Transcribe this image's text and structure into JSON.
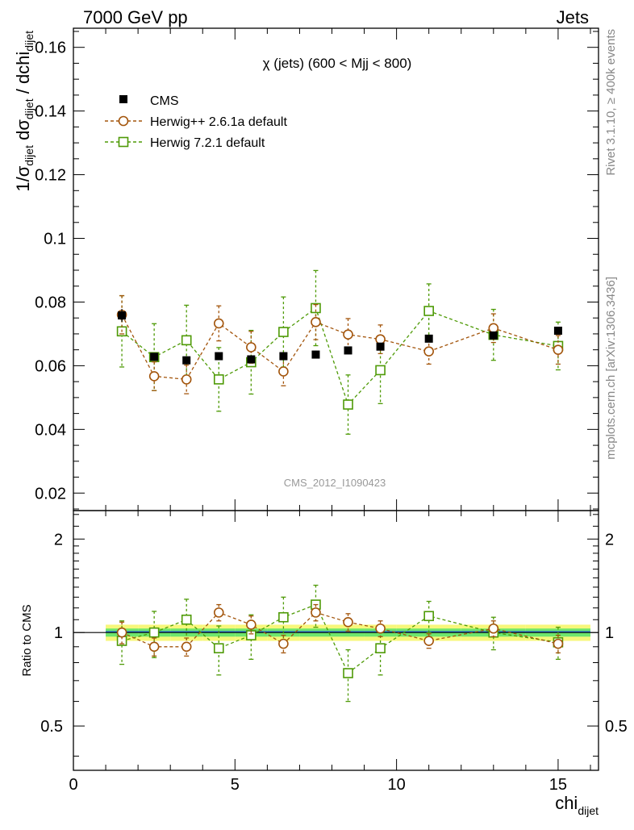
{
  "header": {
    "left_label": "7000 GeV pp",
    "right_label": "Jets",
    "side_label_top": "Rivet 3.1.10, ≥ 400k events",
    "side_label_bottom": "mcplots.cern.ch [arXiv:1306.3436]"
  },
  "chart_data": {
    "type": "scatter",
    "title": "χ (jets) (600 < Mjj <  800)",
    "analysis_tag": "CMS_2012_I1090423",
    "ylabel": {
      "main": "1/σ",
      "sub1": "dijet",
      "mid": " dσ",
      "sub2": "dijet",
      "tail": " / dchi",
      "sub3": "dijet"
    },
    "xlabel": {
      "main": "chi",
      "sub": "dijet"
    },
    "ratio_ylabel": "Ratio to CMS",
    "xlim": [
      0,
      16.25
    ],
    "ylim": [
      0.0145,
      0.166
    ],
    "ratio_ylim": [
      0.36,
      2.47
    ],
    "ratio_log": true,
    "x_ticks": [
      {
        "v": 0,
        "label": "0"
      },
      {
        "v": 5,
        "label": "5"
      },
      {
        "v": 10,
        "label": "10"
      },
      {
        "v": 15,
        "label": "15"
      }
    ],
    "y_ticks": [
      {
        "v": 0.02,
        "label": "0.02"
      },
      {
        "v": 0.04,
        "label": "0.04"
      },
      {
        "v": 0.06,
        "label": "0.06"
      },
      {
        "v": 0.08,
        "label": "0.08"
      },
      {
        "v": 0.1,
        "label": "0.1"
      },
      {
        "v": 0.12,
        "label": "0.12"
      },
      {
        "v": 0.14,
        "label": "0.14"
      },
      {
        "v": 0.16,
        "label": "0.16"
      }
    ],
    "ratio_ticks": [
      {
        "v": 0.5,
        "label": "0.5"
      },
      {
        "v": 1,
        "label": "1"
      },
      {
        "v": 2,
        "label": "2"
      }
    ],
    "bin_edges": [
      1,
      2,
      3,
      4,
      5,
      6,
      7,
      8,
      9,
      10,
      12,
      14,
      16
    ],
    "x": [
      1.5,
      2.5,
      3.5,
      4.5,
      5.5,
      6.5,
      7.5,
      8.5,
      9.5,
      11,
      13,
      15
    ],
    "series": [
      {
        "name": "CMS",
        "style": "data",
        "color": "#000000",
        "values": [
          0.0758,
          0.0628,
          0.0617,
          0.063,
          0.062,
          0.063,
          0.0635,
          0.0648,
          0.066,
          0.0685,
          0.0695,
          0.071
        ],
        "errors": [
          0.002,
          0.0012,
          0.0012,
          0.0012,
          0.0012,
          0.0012,
          0.0012,
          0.0012,
          0.0012,
          0.001,
          0.0012,
          0.0012
        ],
        "ratio_band_inner": [
          0.03,
          0.03,
          0.03,
          0.03,
          0.03,
          0.03,
          0.03,
          0.03,
          0.03,
          0.03,
          0.03,
          0.03
        ],
        "ratio_band_outer": [
          0.06,
          0.06,
          0.06,
          0.06,
          0.06,
          0.06,
          0.06,
          0.06,
          0.06,
          0.06,
          0.06,
          0.06
        ]
      },
      {
        "name": "Herwig++ 2.6.1a default",
        "style": "circle",
        "color": "#a3550c",
        "values": [
          0.076,
          0.0567,
          0.0557,
          0.0733,
          0.0658,
          0.0582,
          0.0737,
          0.0698,
          0.0683,
          0.0645,
          0.0718,
          0.065
        ],
        "errors": [
          0.006,
          0.0045,
          0.0045,
          0.0055,
          0.005,
          0.0045,
          0.0055,
          0.005,
          0.0045,
          0.004,
          0.0045,
          0.0045
        ],
        "ratio": [
          1.0,
          0.9,
          0.9,
          1.16,
          1.06,
          0.92,
          1.16,
          1.08,
          1.03,
          0.94,
          1.03,
          0.92
        ],
        "ratio_errors": [
          0.08,
          0.06,
          0.06,
          0.07,
          0.07,
          0.06,
          0.07,
          0.07,
          0.06,
          0.05,
          0.06,
          0.06
        ]
      },
      {
        "name": "Herwig 7.2.1 default",
        "style": "square",
        "color": "#4e9a06",
        "values": [
          0.0708,
          0.0627,
          0.068,
          0.0557,
          0.0611,
          0.0706,
          0.0781,
          0.0478,
          0.0586,
          0.0772,
          0.0697,
          0.0662
        ],
        "errors": [
          0.0112,
          0.0105,
          0.011,
          0.01,
          0.01,
          0.011,
          0.0118,
          0.0093,
          0.0105,
          0.0085,
          0.008,
          0.0075
        ],
        "ratio": [
          0.94,
          1.0,
          1.1,
          0.89,
          0.98,
          1.12,
          1.23,
          0.74,
          0.89,
          1.13,
          1.0,
          0.93
        ],
        "ratio_errors": [
          0.15,
          0.17,
          0.18,
          0.16,
          0.16,
          0.18,
          0.19,
          0.14,
          0.16,
          0.13,
          0.12,
          0.11
        ]
      }
    ],
    "band_colors": {
      "inner": "#6ee66e",
      "outer": "#f7f77a",
      "line": "#2a6bd4"
    }
  }
}
